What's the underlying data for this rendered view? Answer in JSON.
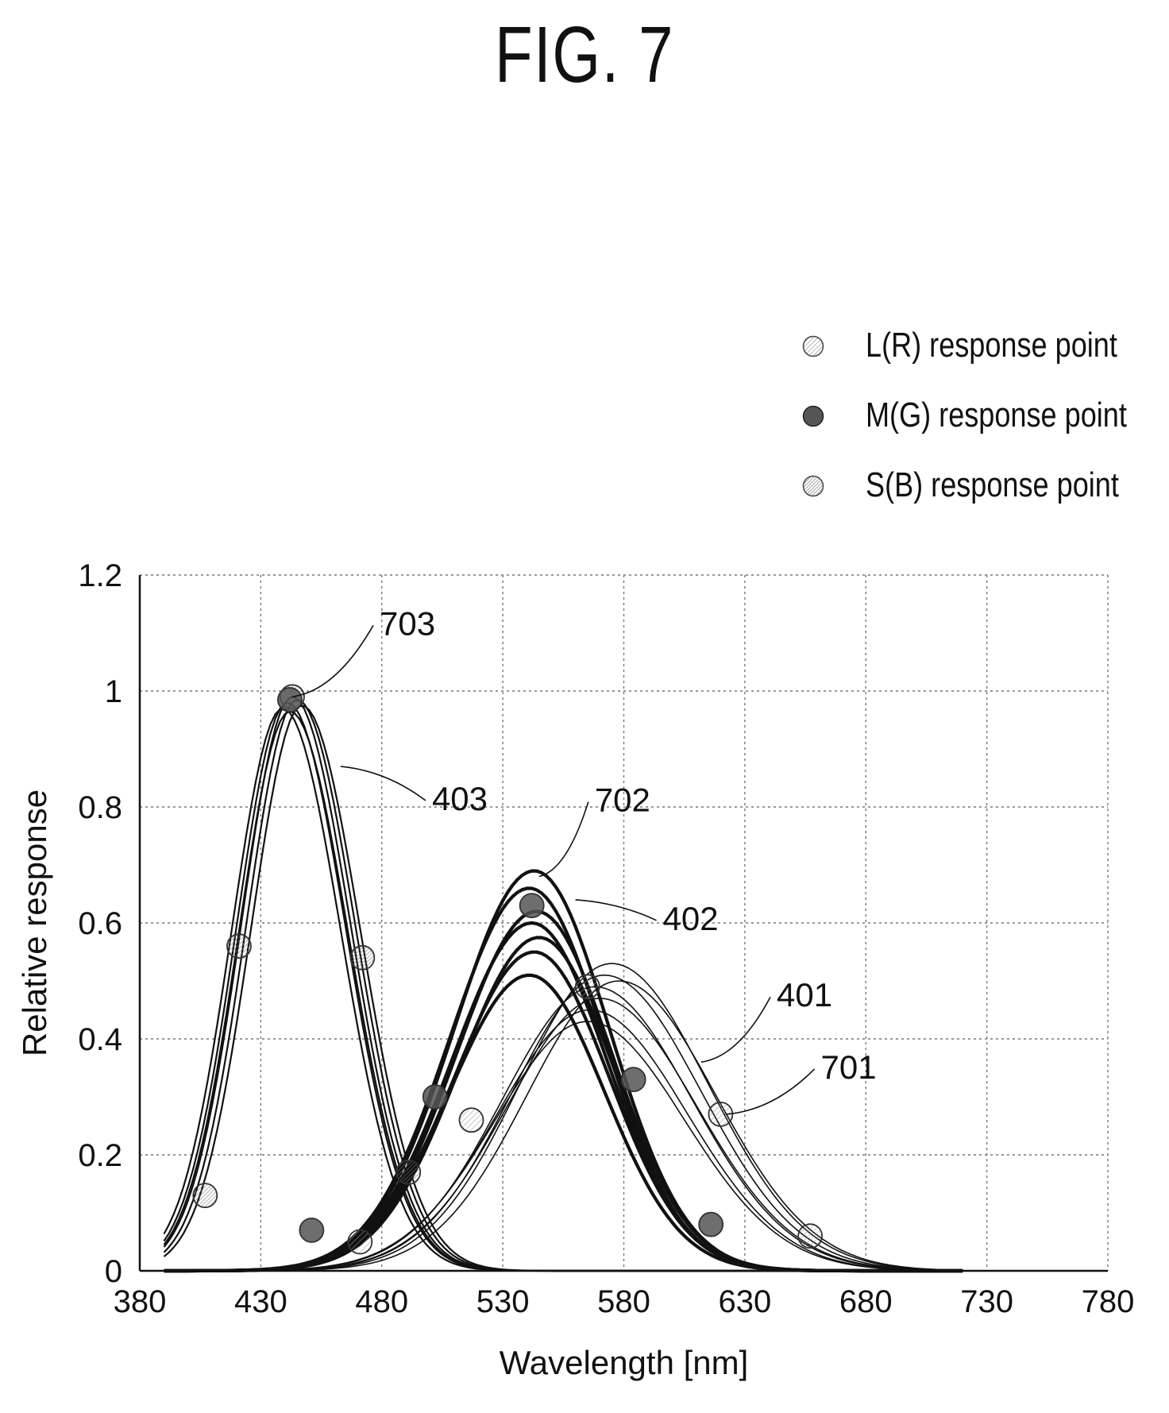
{
  "figure": {
    "title": "FIG. 7"
  },
  "legend": [
    {
      "label": "L(R) response point",
      "style": "light-hatch"
    },
    {
      "label": "M(G) response point",
      "style": "dark-fill"
    },
    {
      "label": "S(B) response point",
      "style": "dense-hatch"
    }
  ],
  "chart_data": {
    "type": "line",
    "xlabel": "Wavelength [nm]",
    "ylabel": "Relative response",
    "xlim": [
      380,
      780
    ],
    "ylim": [
      0,
      1.2
    ],
    "xticks": [
      380,
      430,
      480,
      530,
      580,
      630,
      680,
      730,
      780
    ],
    "yticks": [
      0,
      0.2,
      0.4,
      0.6,
      0.8,
      1,
      1.2
    ],
    "ytick_labels": [
      "0",
      "0.2",
      "0.4",
      "0.6",
      "0.8",
      "1",
      "1.2"
    ],
    "grid": true,
    "legend_position": "top-right",
    "colors": {
      "ink": "#111111",
      "grid": "#777777",
      "marker_dark": "#555555"
    },
    "annotations": [
      {
        "label": "703",
        "x": 443,
        "y": 0.99
      },
      {
        "label": "403",
        "x": 463,
        "y": 0.87
      },
      {
        "label": "702",
        "x": 545,
        "y": 0.68
      },
      {
        "label": "402",
        "x": 560,
        "y": 0.64
      },
      {
        "label": "401",
        "x": 612,
        "y": 0.36
      },
      {
        "label": "701",
        "x": 622,
        "y": 0.27
      }
    ],
    "curve_families": [
      {
        "band": "S",
        "style": "medium",
        "center": 443,
        "peak": 1.0,
        "sigma_left": 21,
        "sigma_right": 24,
        "variants": [
          {
            "center": 443,
            "peak": 0.99
          },
          {
            "center": 441,
            "peak": 0.98
          },
          {
            "center": 445,
            "peak": 0.985
          },
          {
            "center": 439,
            "peak": 0.97
          },
          {
            "center": 447,
            "peak": 0.975
          },
          {
            "center": 442,
            "peak": 0.965
          }
        ]
      },
      {
        "band": "M",
        "style": "bold",
        "center": 543,
        "sigma_left": 33,
        "sigma_right": 31,
        "variants": [
          {
            "center": 543,
            "peak": 0.69
          },
          {
            "center": 541,
            "peak": 0.66
          },
          {
            "center": 544,
            "peak": 0.62
          },
          {
            "center": 542,
            "peak": 0.6
          },
          {
            "center": 545,
            "peak": 0.575
          },
          {
            "center": 543,
            "peak": 0.55
          },
          {
            "center": 541,
            "peak": 0.51
          }
        ]
      },
      {
        "band": "L",
        "style": "thin",
        "center": 570,
        "sigma_left": 38,
        "sigma_right": 40,
        "variants": [
          {
            "center": 575,
            "peak": 0.53
          },
          {
            "center": 572,
            "peak": 0.51
          },
          {
            "center": 568,
            "peak": 0.49
          },
          {
            "center": 570,
            "peak": 0.47
          },
          {
            "center": 566,
            "peak": 0.45
          },
          {
            "center": 565,
            "peak": 0.43
          },
          {
            "center": 578,
            "peak": 0.5
          }
        ]
      }
    ],
    "response_points": [
      {
        "series": "S(B)",
        "x": 407,
        "y": 0.13
      },
      {
        "series": "S(B)",
        "x": 421,
        "y": 0.56
      },
      {
        "series": "S(B)",
        "x": 443,
        "y": 0.99
      },
      {
        "series": "S(B)",
        "x": 472,
        "y": 0.54
      },
      {
        "series": "S(B)",
        "x": 491,
        "y": 0.17
      },
      {
        "series": "M(G)",
        "x": 451,
        "y": 0.07
      },
      {
        "series": "M(G)",
        "x": 442,
        "y": 0.985
      },
      {
        "series": "M(G)",
        "x": 502,
        "y": 0.3
      },
      {
        "series": "M(G)",
        "x": 542,
        "y": 0.63
      },
      {
        "series": "M(G)",
        "x": 584,
        "y": 0.33
      },
      {
        "series": "M(G)",
        "x": 616,
        "y": 0.08
      },
      {
        "series": "L(R)",
        "x": 471,
        "y": 0.05
      },
      {
        "series": "L(R)",
        "x": 517,
        "y": 0.26
      },
      {
        "series": "L(R)",
        "x": 565,
        "y": 0.49
      },
      {
        "series": "L(R)",
        "x": 620,
        "y": 0.27
      },
      {
        "series": "L(R)",
        "x": 657,
        "y": 0.06
      }
    ]
  }
}
